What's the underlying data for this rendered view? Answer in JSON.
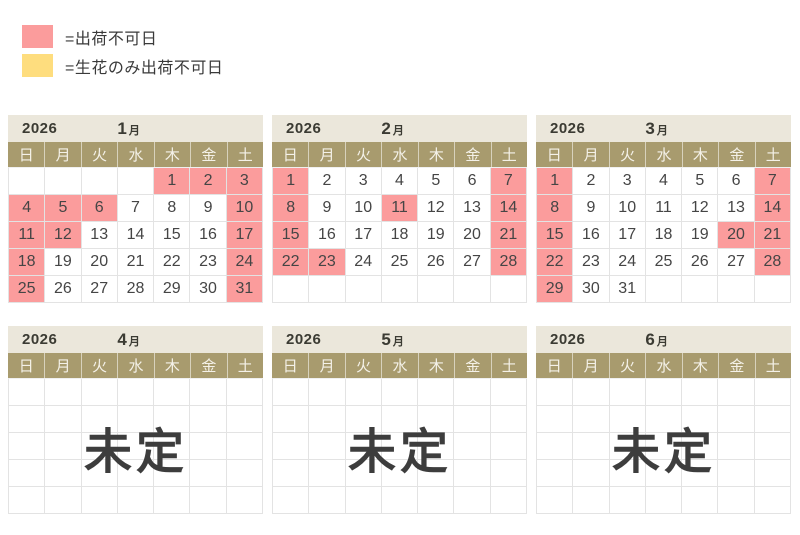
{
  "colors": {
    "no_ship": "#fb9c9c",
    "fresh_only": "#fedd7e",
    "weekday_bg": "#a89b6e",
    "title_bg": "#ebe7db"
  },
  "legend": {
    "items": [
      {
        "color_key": "no_ship",
        "label": "=出荷不可日"
      },
      {
        "color_key": "fresh_only",
        "label": "=生花のみ出荷不可日"
      }
    ]
  },
  "weekday_labels": [
    "日",
    "月",
    "火",
    "水",
    "木",
    "金",
    "土"
  ],
  "calendars": [
    {
      "year": "2026",
      "month": "1",
      "month_suffix": "月",
      "status": "scheduled",
      "rows": 5,
      "first_weekday": 4,
      "num_days": 31,
      "no_ship_days": [
        1,
        2,
        3,
        4,
        5,
        6,
        10,
        11,
        12,
        17,
        18,
        24,
        25,
        31
      ],
      "fresh_only_no_ship_days": []
    },
    {
      "year": "2026",
      "month": "2",
      "month_suffix": "月",
      "status": "scheduled",
      "rows": 5,
      "first_weekday": 0,
      "num_days": 28,
      "no_ship_days": [
        1,
        7,
        8,
        11,
        14,
        15,
        21,
        22,
        23,
        28
      ],
      "fresh_only_no_ship_days": []
    },
    {
      "year": "2026",
      "month": "3",
      "month_suffix": "月",
      "status": "scheduled",
      "rows": 5,
      "first_weekday": 0,
      "num_days": 31,
      "no_ship_days": [
        1,
        7,
        8,
        14,
        15,
        20,
        21,
        22,
        28,
        29
      ],
      "fresh_only_no_ship_days": []
    },
    {
      "year": "2026",
      "month": "4",
      "month_suffix": "月",
      "status": "undecided",
      "rows": 5,
      "undecided_label": "未定"
    },
    {
      "year": "2026",
      "month": "5",
      "month_suffix": "月",
      "status": "undecided",
      "rows": 5,
      "undecided_label": "未定"
    },
    {
      "year": "2026",
      "month": "6",
      "month_suffix": "月",
      "status": "undecided",
      "rows": 5,
      "undecided_label": "未定"
    }
  ]
}
